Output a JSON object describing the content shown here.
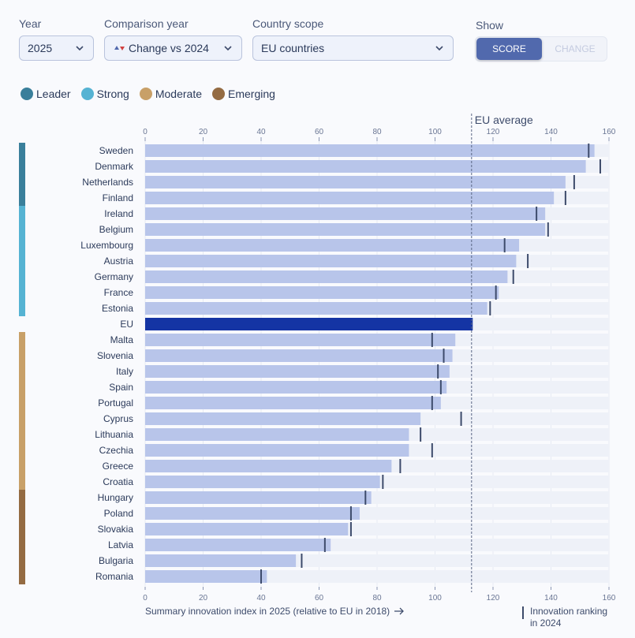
{
  "controls": {
    "year": {
      "label": "Year",
      "value": "2025"
    },
    "comparison": {
      "label": "Comparison year",
      "value": "Change vs 2024"
    },
    "scope": {
      "label": "Country scope",
      "value": "EU countries"
    },
    "show": {
      "label": "Show",
      "options": [
        "SCORE",
        "CHANGE"
      ],
      "selected": "SCORE"
    }
  },
  "colors": {
    "Leader": "#3a7f9b",
    "Strong": "#56b3d3",
    "Moderate": "#c8a068",
    "Emerging": "#946b42",
    "bar": "#b8c5ea",
    "eu_bar": "#1434a4",
    "marker": "#3d4b6b"
  },
  "chart_data": {
    "type": "bar",
    "orientation": "horizontal",
    "legend": [
      "Leader",
      "Strong",
      "Moderate",
      "Emerging"
    ],
    "reference_line": {
      "label": "EU average",
      "value": 112.6
    },
    "xaxis_ticks": [
      0,
      20,
      40,
      60,
      80,
      100,
      120,
      140,
      160
    ],
    "xlim": [
      0,
      160
    ],
    "xlabel": "Summary innovation index in 2025 (relative to EU in 2018)",
    "marker_legend": "Innovation ranking in 2024",
    "countries": [
      {
        "name": "Sweden",
        "value": 155,
        "prev": 153,
        "group": "Leader"
      },
      {
        "name": "Denmark",
        "value": 152,
        "prev": 157,
        "group": "Leader"
      },
      {
        "name": "Netherlands",
        "value": 145,
        "prev": 148,
        "group": "Leader"
      },
      {
        "name": "Finland",
        "value": 141,
        "prev": 145,
        "group": "Leader"
      },
      {
        "name": "Ireland",
        "value": 138,
        "prev": 135,
        "group": "Strong"
      },
      {
        "name": "Belgium",
        "value": 138,
        "prev": 139,
        "group": "Strong"
      },
      {
        "name": "Luxembourg",
        "value": 129,
        "prev": 124,
        "group": "Strong"
      },
      {
        "name": "Austria",
        "value": 128,
        "prev": 132,
        "group": "Strong"
      },
      {
        "name": "Germany",
        "value": 125,
        "prev": 127,
        "group": "Strong"
      },
      {
        "name": "France",
        "value": 122,
        "prev": 121,
        "group": "Strong"
      },
      {
        "name": "Estonia",
        "value": 118,
        "prev": 119,
        "group": "Strong"
      },
      {
        "name": "EU",
        "value": 113,
        "prev": 113,
        "group": "EU"
      },
      {
        "name": "Malta",
        "value": 107,
        "prev": 99,
        "group": "Moderate"
      },
      {
        "name": "Slovenia",
        "value": 106,
        "prev": 103,
        "group": "Moderate"
      },
      {
        "name": "Italy",
        "value": 105,
        "prev": 101,
        "group": "Moderate"
      },
      {
        "name": "Spain",
        "value": 104,
        "prev": 102,
        "group": "Moderate"
      },
      {
        "name": "Portugal",
        "value": 102,
        "prev": 99,
        "group": "Moderate"
      },
      {
        "name": "Cyprus",
        "value": 95,
        "prev": 109,
        "group": "Moderate"
      },
      {
        "name": "Lithuania",
        "value": 91,
        "prev": 95,
        "group": "Moderate"
      },
      {
        "name": "Czechia",
        "value": 91,
        "prev": 99,
        "group": "Moderate"
      },
      {
        "name": "Greece",
        "value": 85,
        "prev": 88,
        "group": "Moderate"
      },
      {
        "name": "Croatia",
        "value": 81,
        "prev": 82,
        "group": "Moderate"
      },
      {
        "name": "Hungary",
        "value": 78,
        "prev": 76,
        "group": "Emerging"
      },
      {
        "name": "Poland",
        "value": 74,
        "prev": 71,
        "group": "Emerging"
      },
      {
        "name": "Slovakia",
        "value": 70,
        "prev": 71,
        "group": "Emerging"
      },
      {
        "name": "Latvia",
        "value": 64,
        "prev": 62,
        "group": "Emerging"
      },
      {
        "name": "Bulgaria",
        "value": 52,
        "prev": 54,
        "group": "Emerging"
      },
      {
        "name": "Romania",
        "value": 42,
        "prev": 40,
        "group": "Emerging"
      }
    ]
  }
}
